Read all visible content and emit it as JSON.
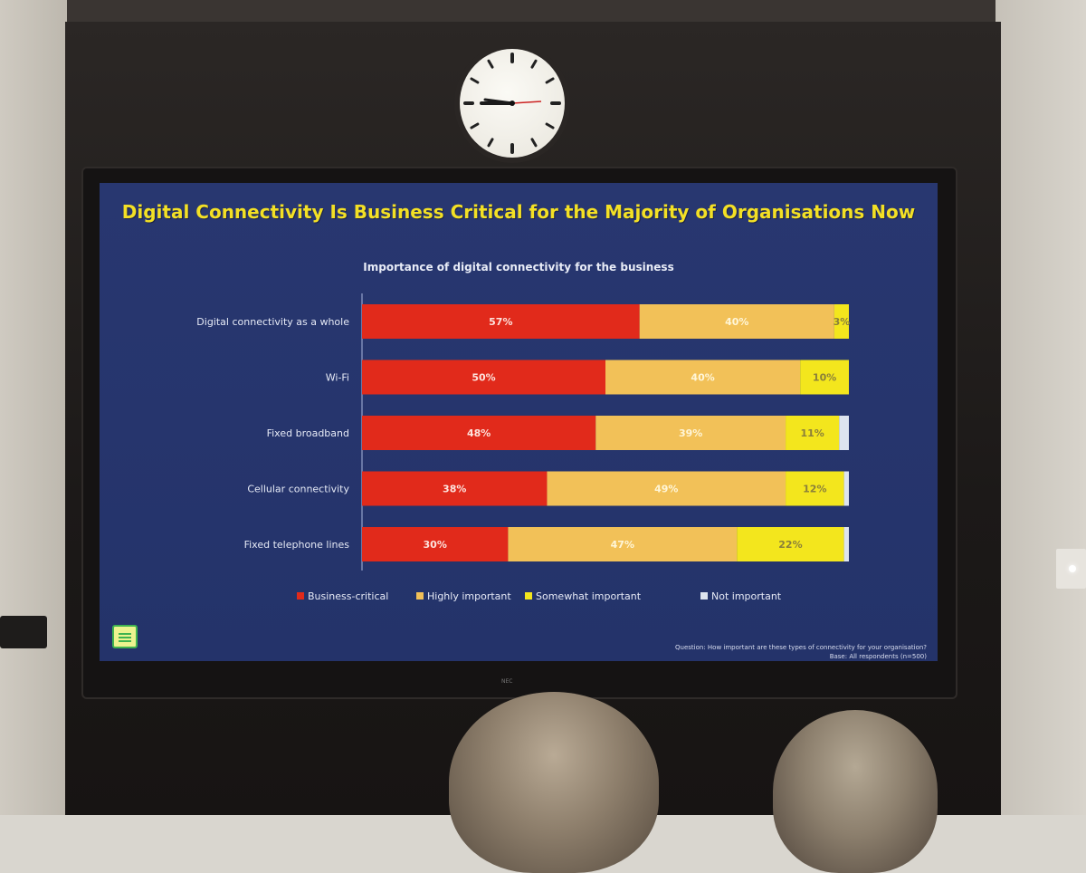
{
  "slide": {
    "title": "Digital Connectivity Is Business Critical for the Majority of Organisations Now",
    "footnote_question": "Question: How important are these types of connectivity for your organisation?",
    "footnote_base": "Base: All respondents (n=500)"
  },
  "colors": {
    "business_critical": "#e12a1b",
    "highly_important": "#f2c158",
    "somewhat_important": "#f3e61d",
    "not_important": "#dde4ef",
    "slide_background": "#26346c",
    "title_yellow": "#f3e025"
  },
  "chart_data": {
    "type": "bar",
    "orientation": "horizontal",
    "stacked": true,
    "title": "Importance of digital connectivity for the business",
    "categories": [
      "Digital connectivity as a whole",
      "Wi-Fi",
      "Fixed broadband",
      "Cellular connectivity",
      "Fixed telephone lines"
    ],
    "series": [
      {
        "name": "Business-critical",
        "values": [
          57,
          50,
          48,
          38,
          30
        ],
        "labels": [
          "57%",
          "50%",
          "48%",
          "38%",
          "30%"
        ],
        "color": "#e12a1b"
      },
      {
        "name": "Highly important",
        "values": [
          40,
          40,
          39,
          49,
          47
        ],
        "labels": [
          "40%",
          "40%",
          "39%",
          "49%",
          "47%"
        ],
        "color": "#f2c158"
      },
      {
        "name": "Somewhat important",
        "values": [
          3,
          10,
          11,
          12,
          22
        ],
        "labels": [
          "3%",
          "10%",
          "11%",
          "12%",
          "22%"
        ],
        "color": "#f3e61d"
      },
      {
        "name": "Not important",
        "values": [
          0,
          0,
          2,
          1,
          1
        ],
        "labels": [
          "",
          "",
          "",
          "",
          ""
        ],
        "color": "#dde4ef"
      }
    ],
    "xlim": [
      0,
      100
    ],
    "legend": "bottom",
    "grid": false
  }
}
